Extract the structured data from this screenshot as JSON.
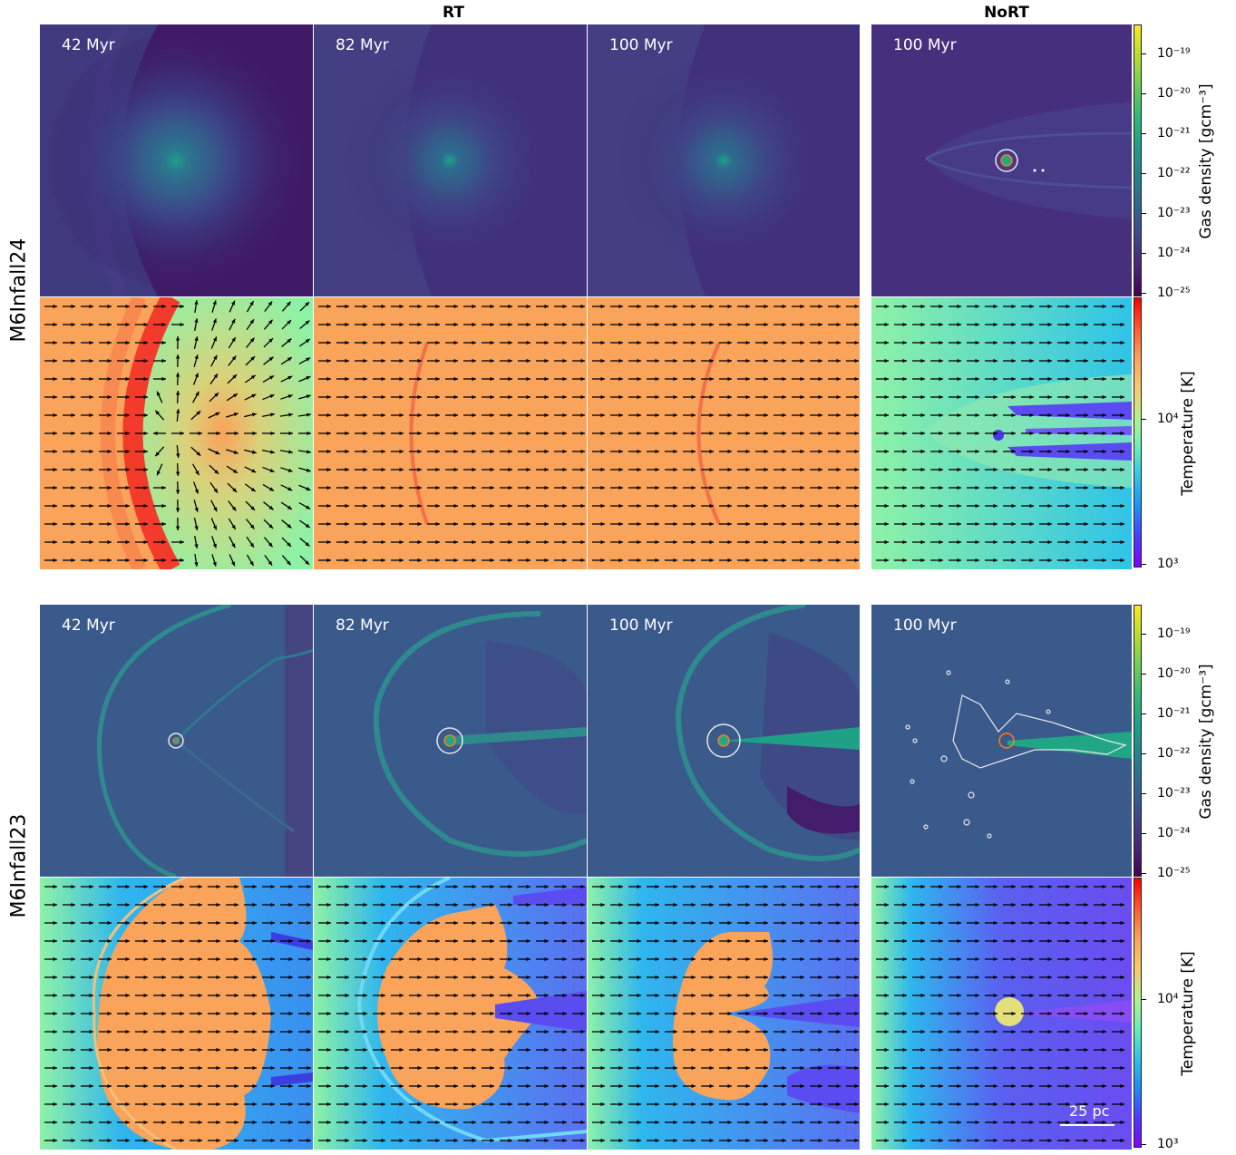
{
  "headers": {
    "rt": "RT",
    "nort": "NoRT"
  },
  "rows": [
    {
      "label": "M6Infall24",
      "times": [
        "42 Myr",
        "82 Myr",
        "100 Myr",
        "100 Myr"
      ]
    },
    {
      "label": "M6Infall23",
      "times": [
        "42 Myr",
        "82 Myr",
        "100 Myr",
        "100 Myr"
      ]
    }
  ],
  "colorbars": {
    "density": {
      "label": "Gas density [gcm⁻³]",
      "ticks": [
        "10⁻¹⁹",
        "10⁻²⁰",
        "10⁻²¹",
        "10⁻²²",
        "10⁻²³",
        "10⁻²⁴",
        "10⁻²⁵"
      ],
      "colormap": "viridis"
    },
    "temperature": {
      "label": "Temperature [K]",
      "ticks": [
        "10⁴",
        "10³"
      ],
      "colormap": "rainbow"
    }
  },
  "scalebar": {
    "label": "25 pc"
  },
  "colors": {
    "density_bg_top": "#3b2f72",
    "density_bg_bottom": "#3a5a8c",
    "temp_warm": "#f9a35b",
    "temp_mid": "#8ef2a6",
    "temp_cool": "#2fb6ee",
    "temp_cold": "#6b4cf0",
    "shock_red": "#f23b2b",
    "contour": "#e8e8e8",
    "sink": "#ff7a1a"
  }
}
